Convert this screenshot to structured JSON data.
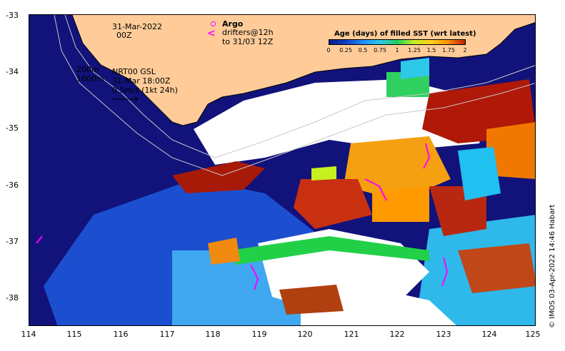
{
  "map": {
    "x_ticks": [
      "114",
      "115",
      "116",
      "117",
      "118",
      "119",
      "120",
      "121",
      "122",
      "123",
      "124",
      "125"
    ],
    "y_ticks": [
      "-33",
      "-34",
      "-35",
      "-36",
      "-37",
      "-38"
    ],
    "extent": {
      "lon_min": 114,
      "lon_max": 125,
      "lat_min": -38.5,
      "lat_max": -33
    },
    "land_color": "#ffcc99",
    "ocean_deep_color": "#1a237e"
  },
  "annotations": {
    "date_line1": "31-Mar-2022",
    "date_line2": "00Z",
    "depth_200": "200m",
    "depth_1000": "1000m",
    "nrt_line1": "NRT00 GSL",
    "nrt_line2": "31-Mar 18:00Z",
    "nrt_line3": "0.5m/s (1kt 24h)"
  },
  "legend": {
    "argo_label": "Argo",
    "drifters_line1": "drifters@12h",
    "drifters_line2": "to 31/03 12Z",
    "argo_icon": "circle-marker",
    "drifter_icon": "chevron-marker",
    "drifter_color": "#ff00ff"
  },
  "colorbar": {
    "title": "Age (days) of filled SST (wrt latest)",
    "ticks": [
      "0",
      "0.25",
      "0.5",
      "0.75",
      "1",
      "1.25",
      "1.5",
      "1.75",
      "2"
    ],
    "colors": [
      "#0a1a8a",
      "#1040c8",
      "#1e90ff",
      "#2ec8e8",
      "#20d060",
      "#c8f020",
      "#ffd020",
      "#ff9000",
      "#c02000"
    ]
  },
  "credit": "© IMOS 03-Apr-2022 14:46 Habart"
}
